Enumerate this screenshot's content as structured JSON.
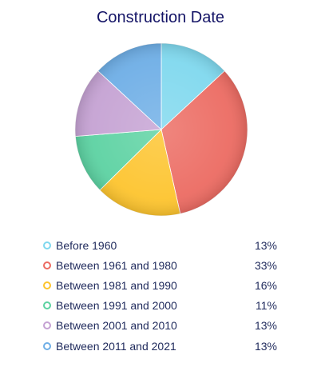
{
  "title": "Construction Date",
  "chart_data": {
    "type": "pie",
    "title": "Construction Date",
    "legend_position": "bottom",
    "categories": [
      "Before 1960",
      "Between 1961 and 1980",
      "Between 1981 and 1990",
      "Between 1991 and 2000",
      "Between 2001 and 2010",
      "Between 2011 and 2021"
    ],
    "values": [
      13,
      33,
      16,
      11,
      13,
      13
    ],
    "labels": [
      "13%",
      "33%",
      "16%",
      "11%",
      "13%",
      "13%"
    ],
    "colors": [
      "#7fd8ee",
      "#ec6b62",
      "#fdc42e",
      "#5cd2a2",
      "#c5a2d3",
      "#6eaee6"
    ]
  }
}
